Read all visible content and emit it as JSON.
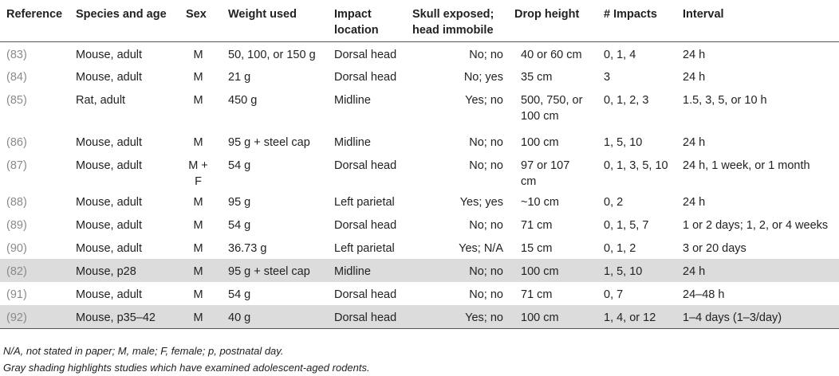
{
  "table": {
    "headers": [
      [
        "Reference"
      ],
      [
        "Species and age"
      ],
      [
        "Sex"
      ],
      [
        "Weight used"
      ],
      [
        "Impact",
        "location"
      ],
      [
        "Skull exposed;",
        "head immobile"
      ],
      [
        "Drop height"
      ],
      [
        "# Impacts"
      ],
      [
        "Interval"
      ]
    ],
    "rows": [
      {
        "ref": "(83)",
        "species": "Mouse, adult",
        "sex": "M",
        "weight": "50, 100, or 150 g",
        "location": "Dorsal head",
        "skull": "No; no",
        "drop": "40 or 60 cm",
        "impacts": "0, 1, 4",
        "interval": "24 h",
        "shaded": false
      },
      {
        "ref": "(84)",
        "species": "Mouse, adult",
        "sex": "M",
        "weight": "21 g",
        "location": "Dorsal head",
        "skull": "No; yes",
        "drop": "35 cm",
        "impacts": "3",
        "interval": "24 h",
        "shaded": false
      },
      {
        "ref": "(85)",
        "species": "Rat, adult",
        "sex": "M",
        "weight": "450 g",
        "location": "Midline",
        "skull": "Yes; no",
        "drop": "500, 750, or 100 cm",
        "impacts": "0, 1, 2, 3",
        "interval": "1.5, 3, 5, or 10 h",
        "shaded": false
      },
      {
        "ref": "(86)",
        "species": "Mouse, adult",
        "sex": "M",
        "weight": "95 g + steel cap",
        "location": "Midline",
        "skull": "No; no",
        "drop": "100 cm",
        "impacts": "1, 5, 10",
        "interval": "24 h",
        "shaded": false
      },
      {
        "ref": "(87)",
        "species": "Mouse, adult",
        "sex": "M + F",
        "weight": "54 g",
        "location": "Dorsal head",
        "skull": "No; no",
        "drop": "97 or 107 cm",
        "impacts": "0, 1, 3, 5, 10",
        "interval": "24 h, 1 week, or 1 month",
        "shaded": false
      },
      {
        "ref": "(88)",
        "species": "Mouse, adult",
        "sex": "M",
        "weight": "95 g",
        "location": "Left parietal",
        "skull": "Yes; yes",
        "drop": "~10 cm",
        "impacts": "0, 2",
        "interval": "24 h",
        "shaded": false
      },
      {
        "ref": "(89)",
        "species": "Mouse, adult",
        "sex": "M",
        "weight": "54 g",
        "location": "Dorsal head",
        "skull": "No; no",
        "drop": "71 cm",
        "impacts": "0, 1, 5, 7",
        "interval": "1 or 2 days; 1, 2, or 4 weeks",
        "shaded": false
      },
      {
        "ref": "(90)",
        "species": "Mouse, adult",
        "sex": "M",
        "weight": "36.73 g",
        "location": "Left parietal",
        "skull": "Yes; N/A",
        "drop": "15 cm",
        "impacts": "0, 1, 2",
        "interval": "3 or 20 days",
        "shaded": false
      },
      {
        "ref": "(82)",
        "species": "Mouse, p28",
        "sex": "M",
        "weight": "95 g + steel cap",
        "location": "Midline",
        "skull": "No; no",
        "drop": "100 cm",
        "impacts": "1, 5, 10",
        "interval": "24 h",
        "shaded": true
      },
      {
        "ref": "(91)",
        "species": "Mouse, adult",
        "sex": "M",
        "weight": "54 g",
        "location": "Dorsal head",
        "skull": "No; no",
        "drop": "71 cm",
        "impacts": "0, 7",
        "interval": "24–48 h",
        "shaded": false
      },
      {
        "ref": "(92)",
        "species": "Mouse, p35–42",
        "sex": "M",
        "weight": "40 g",
        "location": "Dorsal head",
        "skull": "Yes; no",
        "drop": "100 cm",
        "impacts": "1, 4, or 12",
        "interval": "1–4 days (1–3/day)",
        "shaded": true
      }
    ]
  },
  "footnotes": [
    "N/A, not stated in paper; M, male; F, female; p, postnatal day.",
    "Gray shading highlights studies which have examined adolescent-aged rodents."
  ],
  "colors": {
    "shade": "#dcdcdc",
    "reference_text": "#8a8a8a",
    "rule": "#555555"
  }
}
